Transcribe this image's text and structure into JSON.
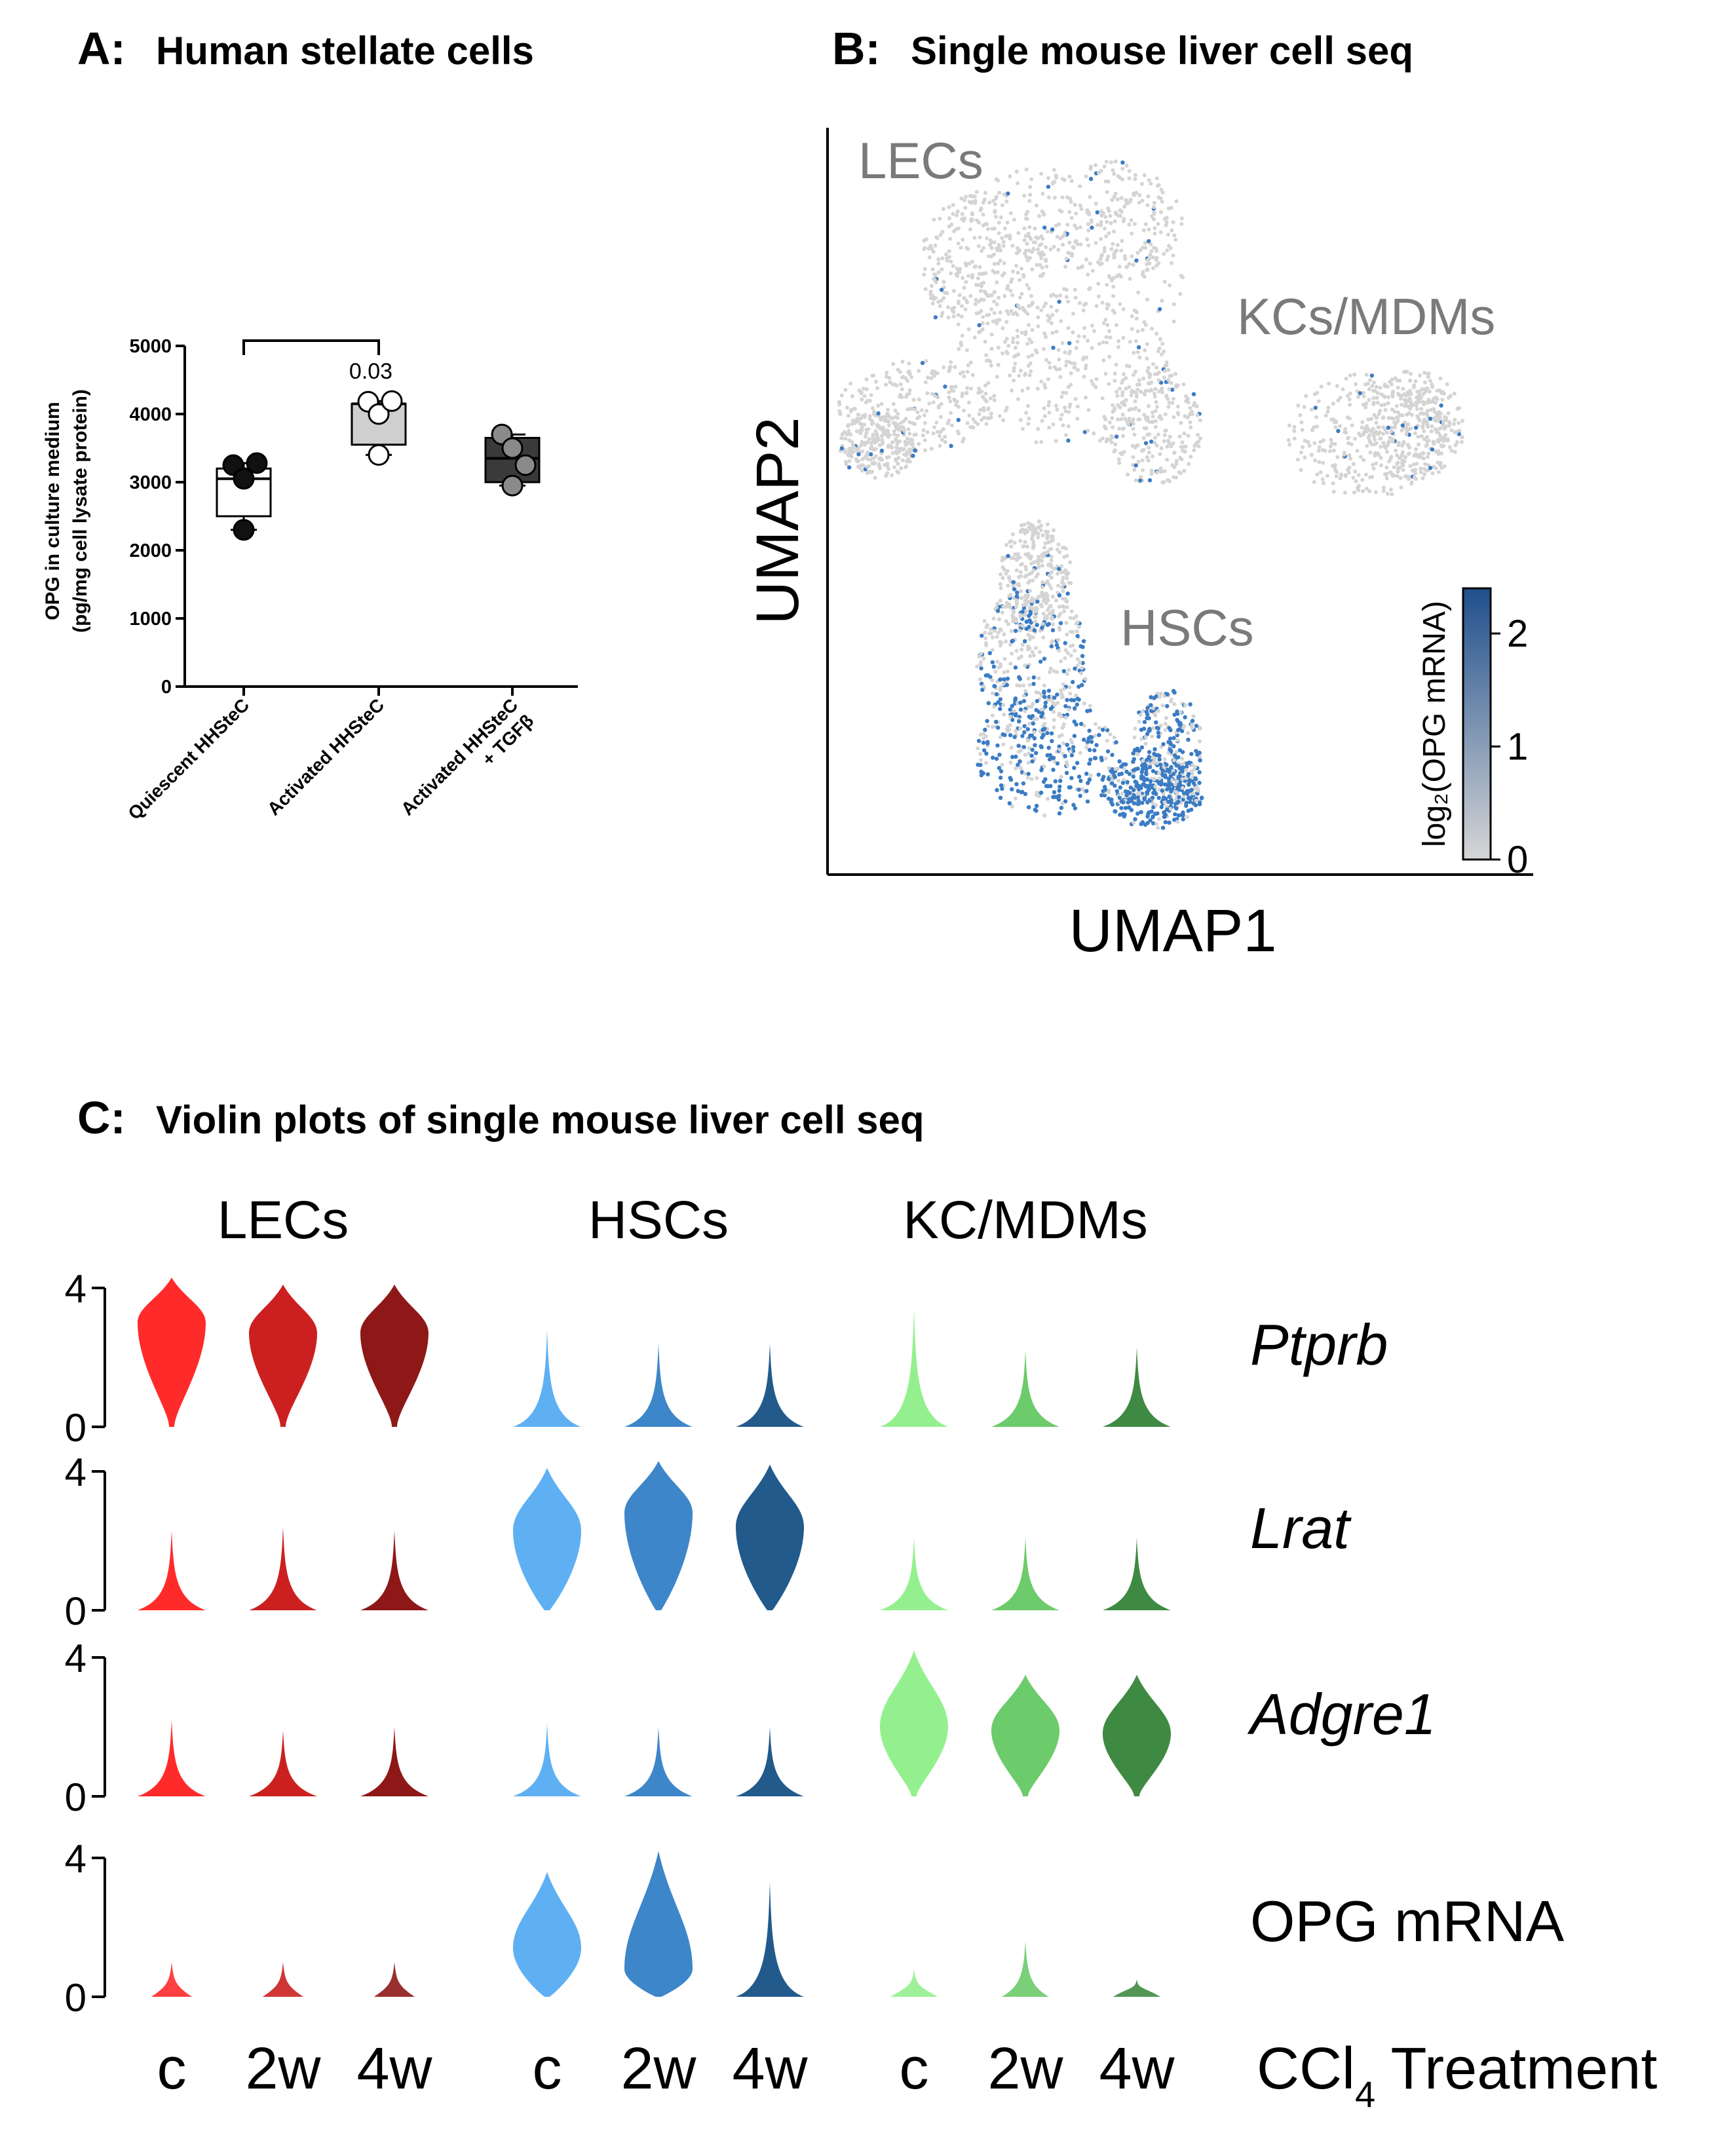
{
  "colors": {
    "quiescent_fill": "#ffffff",
    "activated_fill": "#cfcfcf",
    "tgfb_fill": "#3a3a3a",
    "umap_grey": "#d4d4d4",
    "umap_blue": "#3b7cc4",
    "colorbar_low": "#d6d6d6",
    "colorbar_high": "#1f4f8c",
    "lec_c": "#ff2b2b",
    "lec_2w": "#cc2020",
    "lec_4w": "#8e1818",
    "hsc_c": "#5eb0f2",
    "hsc_2w": "#3d86c9",
    "hsc_4w": "#235a8c",
    "kc_c": "#94f08f",
    "kc_2w": "#6ccb6a",
    "kc_4w": "#3f8a42"
  },
  "panel_a": {
    "letter": "A:",
    "title": "Human stellate cells",
    "chart_data": {
      "type": "box",
      "ylabel_line1": "OPG in culture medium",
      "ylabel_line2": "(pg/mg cell lysate protein)",
      "ylim": [
        0,
        5000
      ],
      "yticks": [
        0,
        1000,
        2000,
        3000,
        4000,
        5000
      ],
      "ytick_labels": [
        "0",
        "1000",
        "2000",
        "3000",
        "4000",
        "5000"
      ],
      "categories": [
        "Quiescent HHSteC",
        "Activated HHSteC",
        "Activated HHSteC + TGFβ"
      ],
      "category_label_lines": [
        [
          "Quiescent HHSteC"
        ],
        [
          "Activated HHSteC"
        ],
        [
          "Activated HHSteC",
          "+ TGFβ"
        ]
      ],
      "boxes": [
        {
          "q1": 2500,
          "median": 3050,
          "q3": 3200,
          "points": [
            3250,
            3050,
            3280,
            2300
          ]
        },
        {
          "q1": 3550,
          "median": 4150,
          "q3": 4150,
          "points": [
            4180,
            4000,
            4190,
            3400
          ]
        },
        {
          "q1": 3000,
          "median": 3350,
          "q3": 3650,
          "points": [
            3700,
            3500,
            3250,
            2950
          ]
        }
      ],
      "comparison": {
        "from": 0,
        "to": 1,
        "label": "0.03"
      }
    }
  },
  "panel_b": {
    "letter": "B:",
    "title": "Single mouse liver cell seq",
    "chart_data": {
      "type": "scatter",
      "xlabel": "UMAP1",
      "ylabel": "UMAP2",
      "clusters": [
        {
          "name": "LECs",
          "blue_fraction": 0.03
        },
        {
          "name": "KCs/MDMs",
          "blue_fraction": 0.04
        },
        {
          "name": "HSCs",
          "blue_fraction": 0.55
        }
      ],
      "colorbar_label": "log₂(OPG mRNA)",
      "colorbar_range": [
        0,
        2.4
      ],
      "colorbar_ticks": [
        "0",
        "1",
        "2"
      ]
    }
  },
  "panel_c": {
    "letter": "C:",
    "title": "Violin plots of single mouse liver cell seq",
    "chart_data": {
      "type": "violin",
      "groups": [
        "LECs",
        "HSCs",
        "KC/MDMs"
      ],
      "conditions": [
        "c",
        "2w",
        "4w"
      ],
      "x_axis_title": "CCl",
      "x_axis_title_sub": "4",
      "x_axis_title_rest": " Treatment",
      "genes": [
        "Ptprb",
        "Lrat",
        "Adgre1",
        "OPG mRNA"
      ],
      "gene_italic": [
        true,
        true,
        true,
        false
      ],
      "yticks": [
        "0",
        "4"
      ],
      "ylim": [
        0,
        4
      ],
      "violins": [
        [
          [
            {
              "peak": 3.0,
              "width": 1.0,
              "top": 4.3,
              "tail": 0.5
            },
            {
              "peak": 2.7,
              "width": 1.0,
              "top": 4.1,
              "tail": 0.5
            },
            {
              "peak": 2.7,
              "width": 1.0,
              "top": 4.1,
              "tail": 0.5
            }
          ],
          [
            {
              "peak": 0.05,
              "width": 1.0,
              "top": 2.3,
              "tail": 0
            },
            {
              "peak": 0.05,
              "width": 1.0,
              "top": 2.4,
              "tail": 0
            },
            {
              "peak": 0.05,
              "width": 1.0,
              "top": 2.3,
              "tail": 0
            }
          ],
          [
            {
              "peak": 0.05,
              "width": 1.0,
              "top": 2.2,
              "tail": 0
            },
            {
              "peak": 0.05,
              "width": 1.0,
              "top": 1.9,
              "tail": 0
            },
            {
              "peak": 0.05,
              "width": 1.0,
              "top": 2.0,
              "tail": 0
            }
          ],
          [
            {
              "peak": 0.02,
              "width": 0.6,
              "top": 1.0,
              "tail": 0
            },
            {
              "peak": 0.02,
              "width": 0.6,
              "top": 1.0,
              "tail": 0
            },
            {
              "peak": 0.02,
              "width": 0.6,
              "top": 1.0,
              "tail": 0
            }
          ]
        ],
        [
          [
            {
              "peak": 0.1,
              "width": 1.0,
              "top": 2.8,
              "tail": 0
            },
            {
              "peak": 0.1,
              "width": 1.0,
              "top": 2.4,
              "tail": 0
            },
            {
              "peak": 0.1,
              "width": 1.0,
              "top": 2.4,
              "tail": 0
            }
          ],
          [
            {
              "peak": 2.3,
              "width": 1.0,
              "top": 4.1,
              "tail": 0
            },
            {
              "peak": 2.8,
              "width": 1.0,
              "top": 4.3,
              "tail": 0
            },
            {
              "peak": 2.4,
              "width": 1.0,
              "top": 4.2,
              "tail": 0
            }
          ],
          [
            {
              "peak": 0.1,
              "width": 1.0,
              "top": 2.1,
              "tail": 0
            },
            {
              "peak": 0.1,
              "width": 1.0,
              "top": 2.0,
              "tail": 0
            },
            {
              "peak": 0.1,
              "width": 1.0,
              "top": 2.0,
              "tail": 0
            }
          ],
          [
            {
              "peak": 1.4,
              "width": 1.0,
              "top": 3.6,
              "tail": 0
            },
            {
              "peak": 0.8,
              "width": 1.0,
              "top": 4.2,
              "tail": 0
            },
            {
              "peak": 0.1,
              "width": 1.0,
              "top": 3.3,
              "tail": 0
            }
          ]
        ],
        [
          [
            {
              "peak": 0.1,
              "width": 1.0,
              "top": 3.4,
              "tail": 0
            },
            {
              "peak": 0.1,
              "width": 1.0,
              "top": 2.2,
              "tail": 0
            },
            {
              "peak": 0.1,
              "width": 1.0,
              "top": 2.3,
              "tail": 0
            }
          ],
          [
            {
              "peak": 0.05,
              "width": 1.0,
              "top": 2.1,
              "tail": 0
            },
            {
              "peak": 0.05,
              "width": 1.0,
              "top": 2.1,
              "tail": 0
            },
            {
              "peak": 0.05,
              "width": 1.0,
              "top": 2.1,
              "tail": 0
            }
          ],
          [
            {
              "peak": 2.0,
              "width": 1.0,
              "top": 4.2,
              "tail": 0.3
            },
            {
              "peak": 1.9,
              "width": 1.0,
              "top": 3.5,
              "tail": 0.3
            },
            {
              "peak": 1.8,
              "width": 1.0,
              "top": 3.5,
              "tail": 0.3
            }
          ],
          [
            {
              "peak": 0.02,
              "width": 0.7,
              "top": 0.8,
              "tail": 0
            },
            {
              "peak": 0.02,
              "width": 0.7,
              "top": 1.6,
              "tail": 0
            },
            {
              "peak": 0.02,
              "width": 0.7,
              "top": 0.5,
              "tail": 0
            }
          ]
        ]
      ]
    }
  }
}
